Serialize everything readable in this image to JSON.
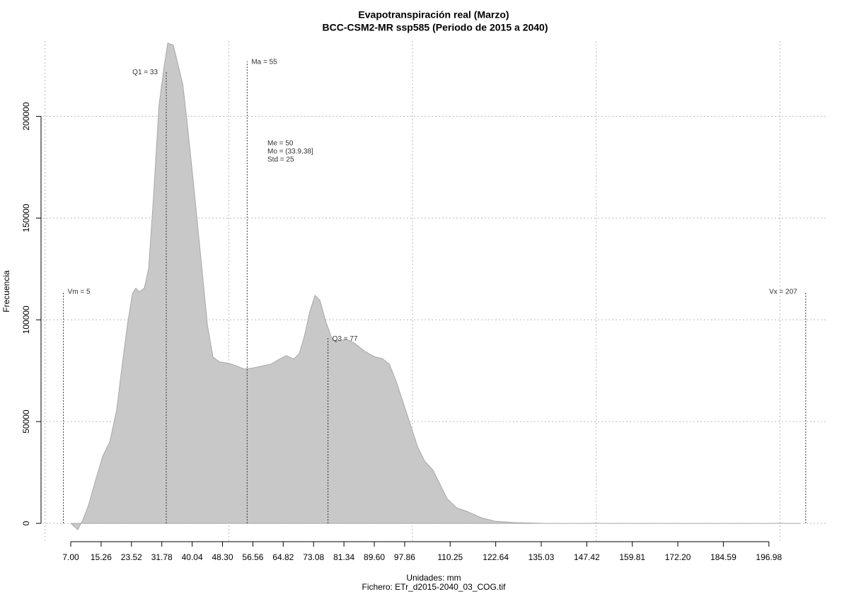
{
  "chart_data": {
    "type": "area",
    "title": "Evapotranspiración real (Marzo)",
    "subtitle": "BCC-CSM2-MR ssp585 (Periodo de 2015 a 2040)",
    "x_label": "Unidades: mm",
    "caption": "Fichero: ETr_d2015-2040_03_COG.tif",
    "y_label": "Frecuencia",
    "color": "#c8c8c8",
    "x": [
      7.0,
      8.9,
      10.3,
      11.8,
      13.7,
      15.7,
      17.6,
      19.5,
      20.9,
      22.4,
      23.8,
      24.7,
      25.7,
      27.0,
      28.2,
      29.5,
      31.0,
      32.4,
      33.4,
      34.9,
      37.5,
      38.8,
      40.4,
      42.3,
      44.2,
      45.7,
      47.5,
      50.0,
      52.3,
      54.2,
      56.1,
      59.0,
      61.5,
      63.8,
      65.7,
      67.7,
      69.2,
      70.6,
      72.1,
      73.5,
      74.8,
      76.4,
      78.3,
      80.2,
      82.1,
      84.1,
      87.0,
      89.8,
      91.7,
      93.7,
      95.6,
      97.5,
      99.4,
      101.4,
      103.3,
      105.6,
      107.5,
      109.4,
      112.0,
      114.8,
      118.7,
      122.5,
      128.3,
      136.0,
      205.3
    ],
    "values": [
      0,
      -3130,
      1740,
      8700,
      20870,
      33040,
      40000,
      55650,
      76520,
      97390,
      113040,
      115480,
      113740,
      115480,
      125220,
      160000,
      205220,
      224350,
      236000,
      235000,
      215650,
      194780,
      166960,
      132170,
      97390,
      81740,
      79300,
      78610,
      77220,
      75830,
      76170,
      77220,
      78260,
      80700,
      82430,
      80700,
      83480,
      92170,
      104350,
      112000,
      109570,
      99130,
      89740,
      89740,
      90430,
      88700,
      84520,
      81740,
      81040,
      78260,
      69570,
      59130,
      48700,
      37570,
      30610,
      26090,
      19130,
      12170,
      7650,
      5910,
      2780,
      1040,
      350,
      0,
      0
    ],
    "xlim": [
      -0.7,
      213
    ],
    "ylim": [
      -9700,
      237000
    ],
    "xticks": [
      {
        "value": 7.0,
        "label": "7.00"
      },
      {
        "value": 15.26,
        "label": "15.26"
      },
      {
        "value": 23.52,
        "label": "23.52"
      },
      {
        "value": 31.78,
        "label": "31.78"
      },
      {
        "value": 40.04,
        "label": "40.04"
      },
      {
        "value": 48.3,
        "label": "48.30"
      },
      {
        "value": 56.56,
        "label": "56.56"
      },
      {
        "value": 64.82,
        "label": "64.82"
      },
      {
        "value": 73.08,
        "label": "73.08"
      },
      {
        "value": 81.34,
        "label": "81.34"
      },
      {
        "value": 89.6,
        "label": "89.60"
      },
      {
        "value": 97.86,
        "label": "97.86"
      },
      {
        "value": 110.25,
        "label": "110.25"
      },
      {
        "value": 122.64,
        "label": "122.64"
      },
      {
        "value": 135.03,
        "label": "135.03"
      },
      {
        "value": 147.42,
        "label": "147.42"
      },
      {
        "value": 159.81,
        "label": "159.81"
      },
      {
        "value": 172.2,
        "label": "172.20"
      },
      {
        "value": 184.59,
        "label": "184.59"
      },
      {
        "value": 196.98,
        "label": "196.98"
      }
    ],
    "yticks": [
      0,
      50000,
      100000,
      150000,
      200000
    ],
    "xgrid": [
      0,
      50,
      100,
      150,
      200
    ],
    "grid": true,
    "markers": [
      {
        "label": "Vm = 5",
        "x": 5,
        "y": 114000,
        "side": "right"
      },
      {
        "label": "Q1 = 33",
        "x": 33,
        "y": 222000,
        "side": "left"
      },
      {
        "label": "Ma = 55",
        "x": 55,
        "y": 227000,
        "side": "right"
      },
      {
        "label": "Q3 = 77",
        "x": 77,
        "y": 91000,
        "side": "right"
      },
      {
        "label": "Vx = 207",
        "x": 207,
        "y": 114000,
        "side": "left"
      }
    ],
    "stats": [
      "Me = 50",
      "Mo = (33.9,38]",
      "Std = 25"
    ]
  }
}
